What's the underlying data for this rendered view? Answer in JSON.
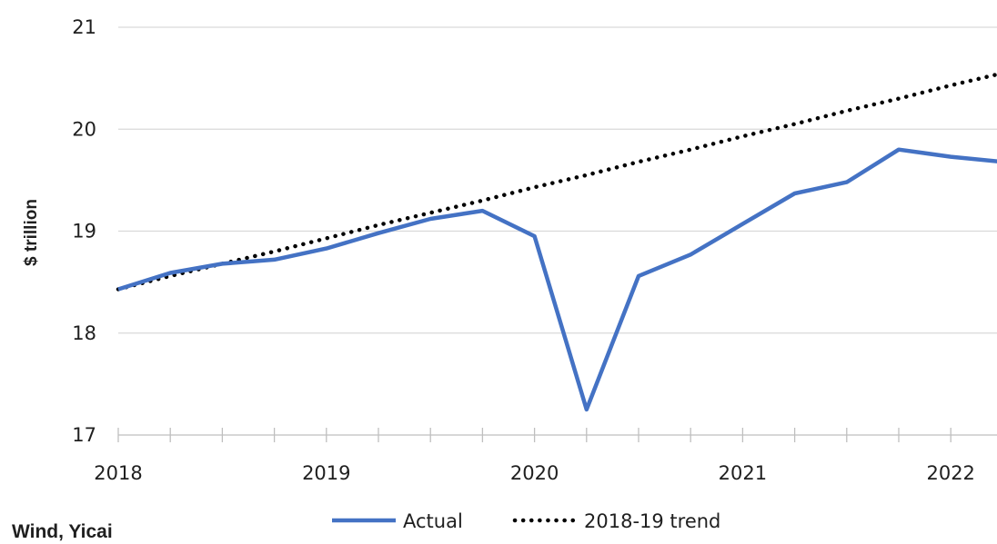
{
  "chart_data": {
    "type": "line",
    "ylabel": "$ trillion",
    "ylim": [
      17,
      21
    ],
    "yticks": [
      "21",
      "20",
      "19",
      "18",
      "17"
    ],
    "xticks": [
      "2018",
      "2019",
      "2020",
      "2021",
      "2022"
    ],
    "x": [
      "2018Q1",
      "2018Q2",
      "2018Q3",
      "2018Q4",
      "2019Q1",
      "2019Q2",
      "2019Q3",
      "2019Q4",
      "2020Q1",
      "2020Q2",
      "2020Q3",
      "2020Q4",
      "2021Q1",
      "2021Q2",
      "2021Q3",
      "2021Q4",
      "2022Q1",
      "2022Q2"
    ],
    "grid": true,
    "legend_position": "bottom",
    "series": [
      {
        "name": "Actual",
        "color": "#4472C4",
        "style": "solid",
        "values": [
          18.43,
          18.59,
          18.68,
          18.72,
          18.83,
          18.98,
          19.12,
          19.2,
          18.95,
          17.25,
          18.56,
          18.77,
          19.07,
          19.37,
          19.48,
          19.8,
          19.73,
          19.68
        ]
      },
      {
        "name": "2018-19 trend",
        "color": "#000000",
        "style": "dotted",
        "values": [
          18.43,
          18.56,
          18.68,
          18.8,
          18.93,
          19.06,
          19.18,
          19.3,
          19.43,
          19.55,
          19.68,
          19.8,
          19.93,
          20.05,
          20.18,
          20.3,
          20.43,
          20.55
        ]
      }
    ],
    "source": "Wind, Yicai"
  }
}
